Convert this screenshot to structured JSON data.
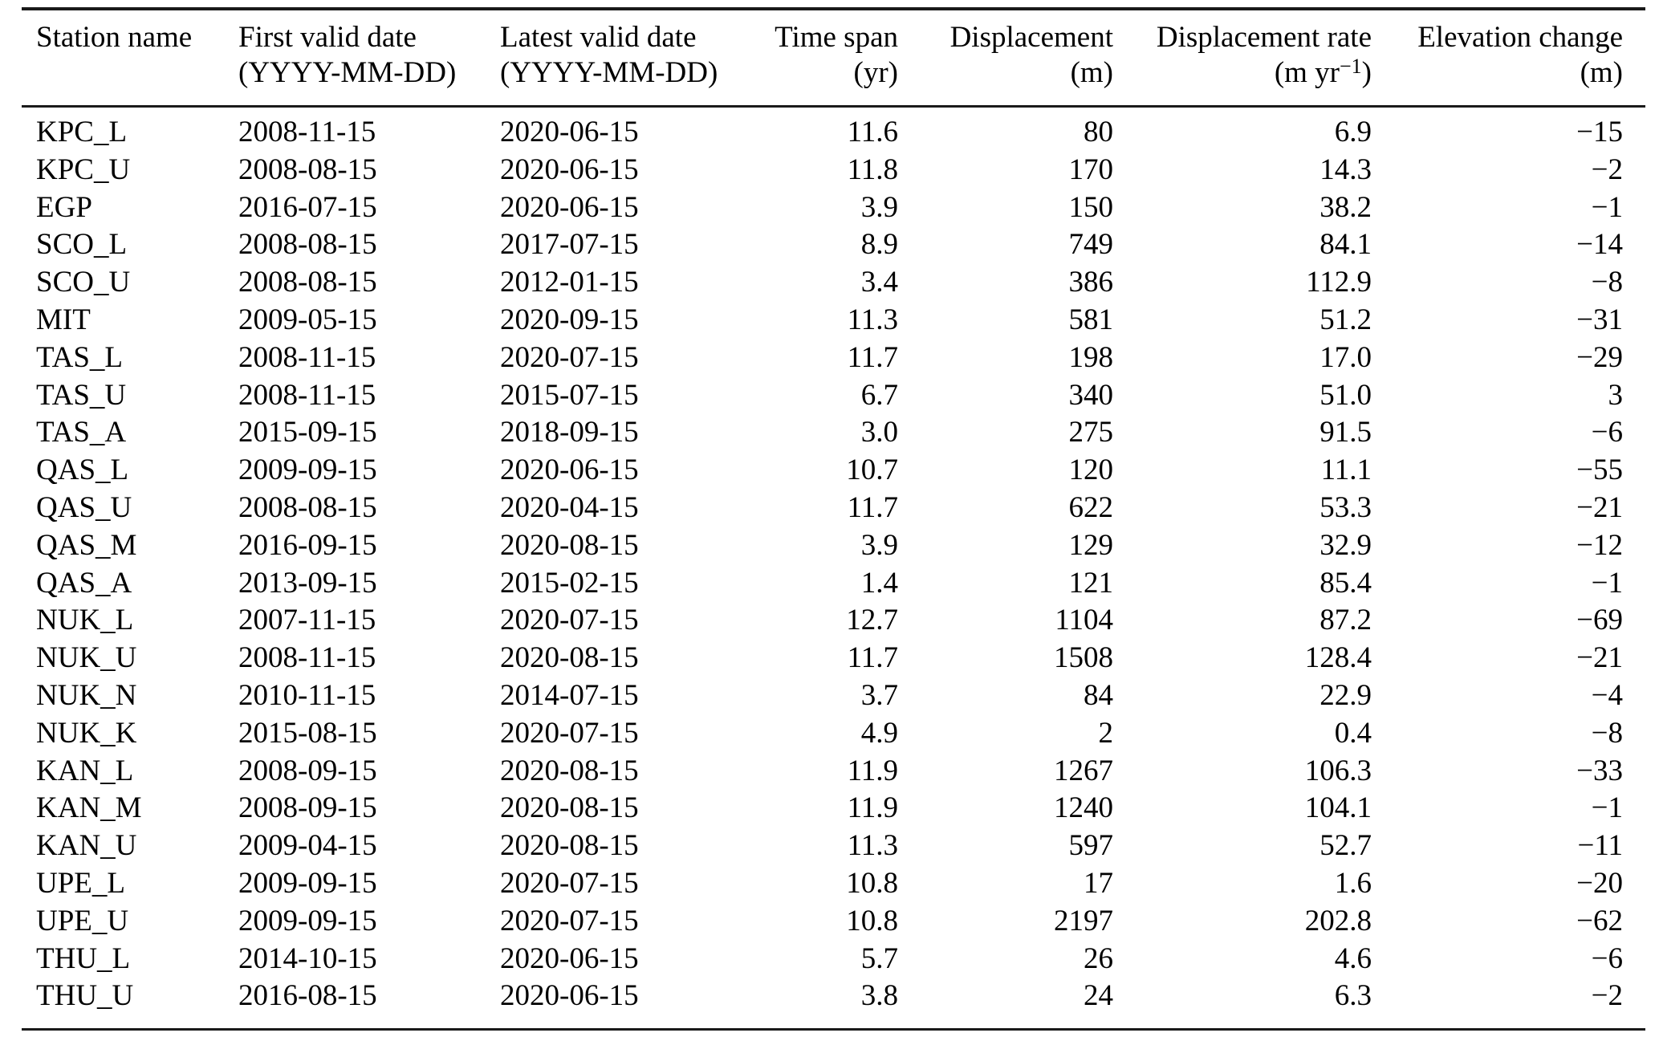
{
  "table": {
    "columns": [
      {
        "label": "Station name",
        "unit": ""
      },
      {
        "label": "First valid date",
        "unit": "(YYYY-MM-DD)"
      },
      {
        "label": "Latest valid date",
        "unit": "(YYYY-MM-DD)"
      },
      {
        "label": "Time span",
        "unit": "(yr)"
      },
      {
        "label": "Displacement",
        "unit": "(m)"
      },
      {
        "label": "Displacement rate",
        "unit_prefix": "(m yr",
        "unit_sup": "−1",
        "unit_suffix": ")"
      },
      {
        "label": "Elevation change",
        "unit": "(m)"
      }
    ],
    "rows": [
      [
        "KPC_L",
        "2008-11-15",
        "2020-06-15",
        "11.6",
        "80",
        "6.9",
        "−15"
      ],
      [
        "KPC_U",
        "2008-08-15",
        "2020-06-15",
        "11.8",
        "170",
        "14.3",
        "−2"
      ],
      [
        "EGP",
        "2016-07-15",
        "2020-06-15",
        "3.9",
        "150",
        "38.2",
        "−1"
      ],
      [
        "SCO_L",
        "2008-08-15",
        "2017-07-15",
        "8.9",
        "749",
        "84.1",
        "−14"
      ],
      [
        "SCO_U",
        "2008-08-15",
        "2012-01-15",
        "3.4",
        "386",
        "112.9",
        "−8"
      ],
      [
        "MIT",
        "2009-05-15",
        "2020-09-15",
        "11.3",
        "581",
        "51.2",
        "−31"
      ],
      [
        "TAS_L",
        "2008-11-15",
        "2020-07-15",
        "11.7",
        "198",
        "17.0",
        "−29"
      ],
      [
        "TAS_U",
        "2008-11-15",
        "2015-07-15",
        "6.7",
        "340",
        "51.0",
        "3"
      ],
      [
        "TAS_A",
        "2015-09-15",
        "2018-09-15",
        "3.0",
        "275",
        "91.5",
        "−6"
      ],
      [
        "QAS_L",
        "2009-09-15",
        "2020-06-15",
        "10.7",
        "120",
        "11.1",
        "−55"
      ],
      [
        "QAS_U",
        "2008-08-15",
        "2020-04-15",
        "11.7",
        "622",
        "53.3",
        "−21"
      ],
      [
        "QAS_M",
        "2016-09-15",
        "2020-08-15",
        "3.9",
        "129",
        "32.9",
        "−12"
      ],
      [
        "QAS_A",
        "2013-09-15",
        "2015-02-15",
        "1.4",
        "121",
        "85.4",
        "−1"
      ],
      [
        "NUK_L",
        "2007-11-15",
        "2020-07-15",
        "12.7",
        "1104",
        "87.2",
        "−69"
      ],
      [
        "NUK_U",
        "2008-11-15",
        "2020-08-15",
        "11.7",
        "1508",
        "128.4",
        "−21"
      ],
      [
        "NUK_N",
        "2010-11-15",
        "2014-07-15",
        "3.7",
        "84",
        "22.9",
        "−4"
      ],
      [
        "NUK_K",
        "2015-08-15",
        "2020-07-15",
        "4.9",
        "2",
        "0.4",
        "−8"
      ],
      [
        "KAN_L",
        "2008-09-15",
        "2020-08-15",
        "11.9",
        "1267",
        "106.3",
        "−33"
      ],
      [
        "KAN_M",
        "2008-09-15",
        "2020-08-15",
        "11.9",
        "1240",
        "104.1",
        "−1"
      ],
      [
        "KAN_U",
        "2009-04-15",
        "2020-08-15",
        "11.3",
        "597",
        "52.7",
        "−11"
      ],
      [
        "UPE_L",
        "2009-09-15",
        "2020-07-15",
        "10.8",
        "17",
        "1.6",
        "−20"
      ],
      [
        "UPE_U",
        "2009-09-15",
        "2020-07-15",
        "10.8",
        "2197",
        "202.8",
        "−62"
      ],
      [
        "THU_L",
        "2014-10-15",
        "2020-06-15",
        "5.7",
        "26",
        "4.6",
        "−6"
      ],
      [
        "THU_U",
        "2016-08-15",
        "2020-06-15",
        "3.8",
        "24",
        "6.3",
        "−2"
      ]
    ]
  }
}
